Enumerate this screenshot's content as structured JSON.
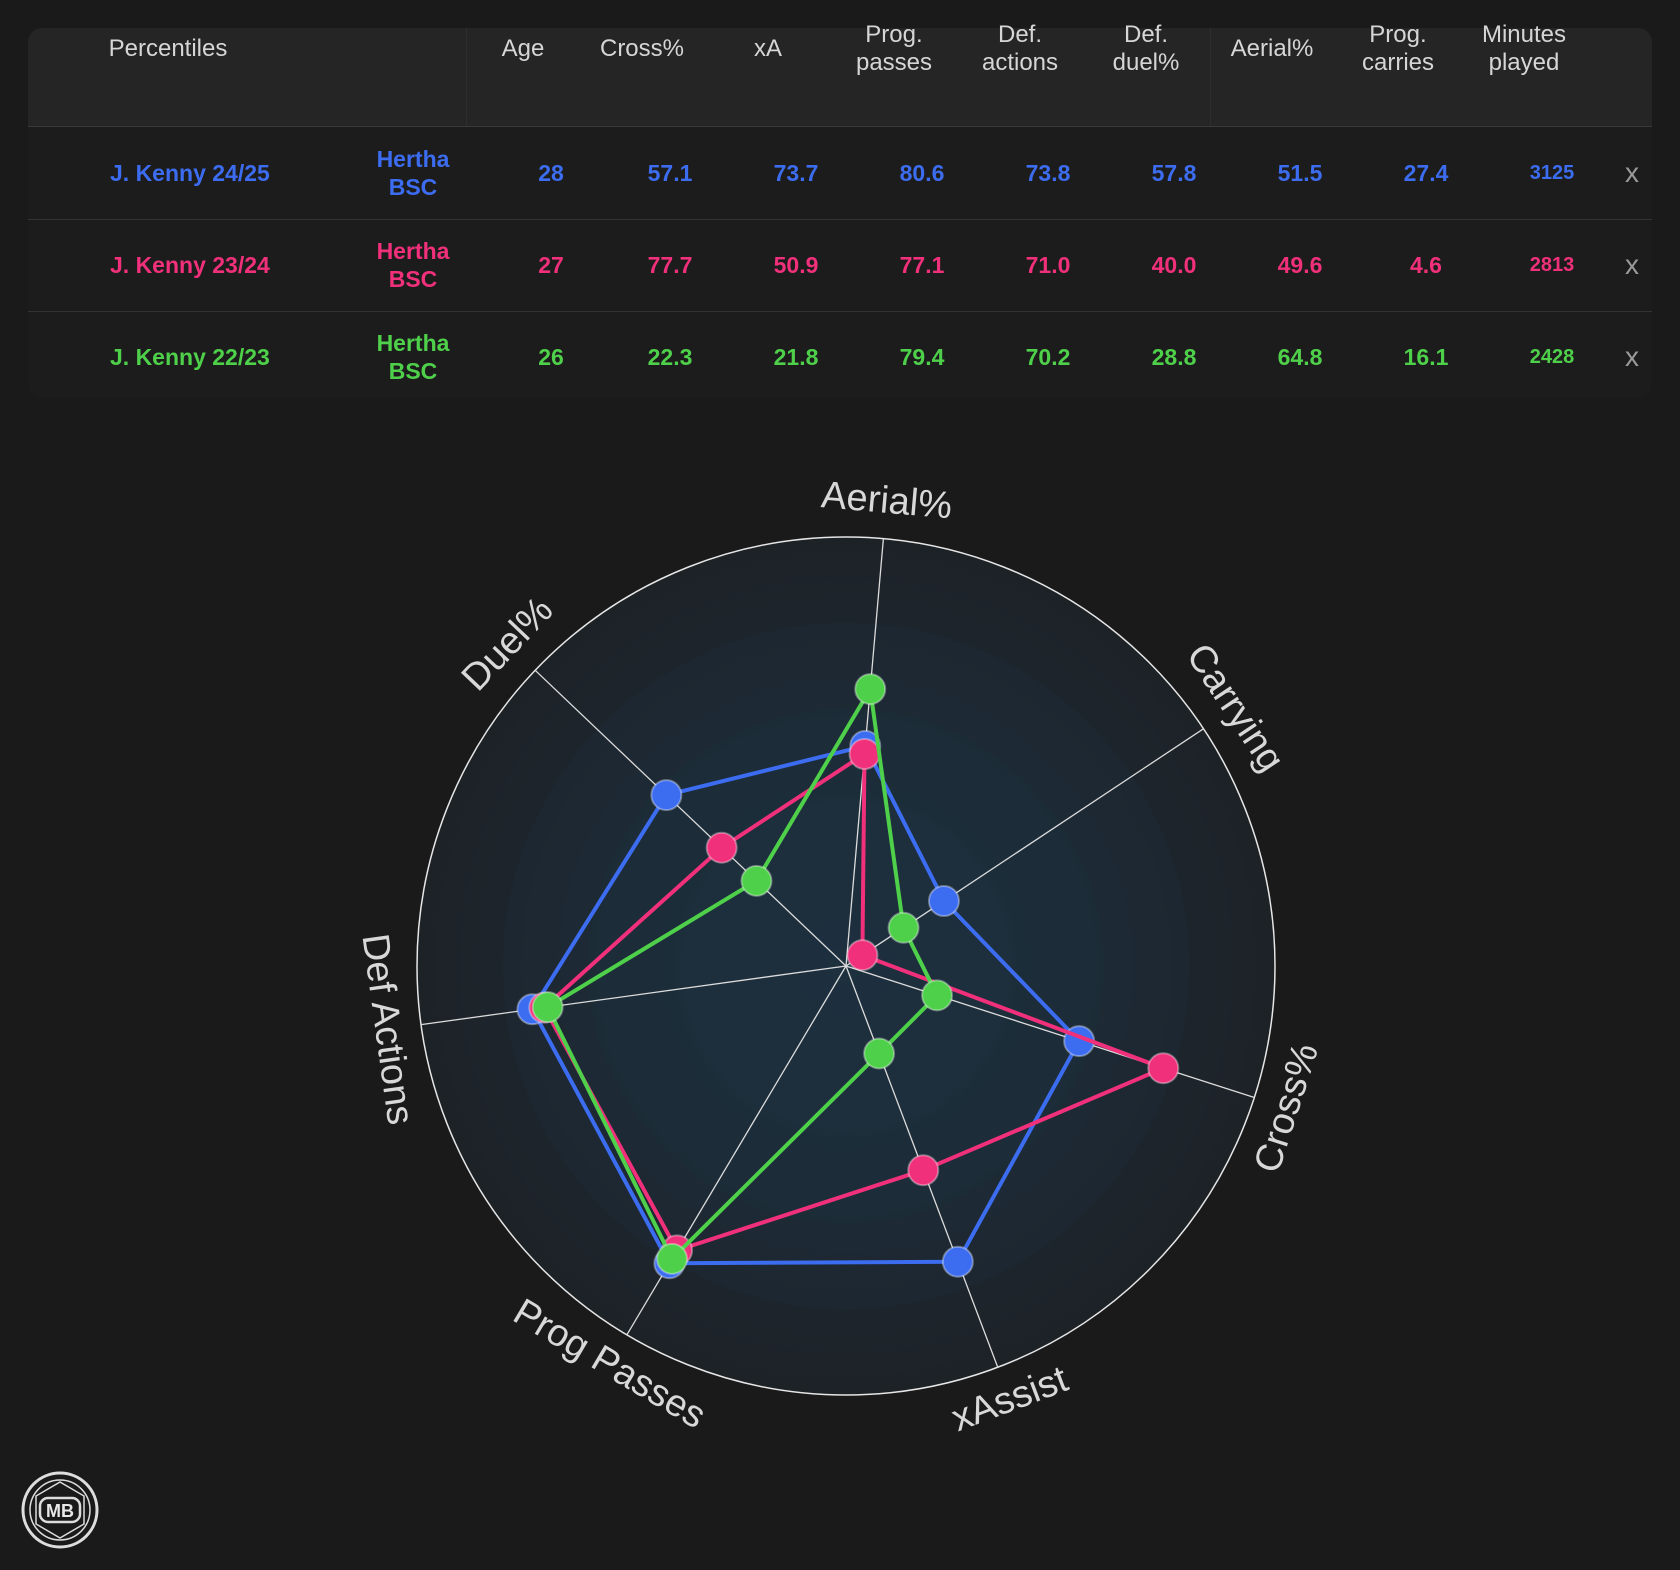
{
  "table": {
    "headers": {
      "percentiles": "Percentiles",
      "age": "Age",
      "cross": "Cross%",
      "xa": "xA",
      "prog_passes": "Prog.\npasses",
      "def_actions": "Def.\nactions",
      "def_duel": "Def.\nduel%",
      "aerial": "Aerial%",
      "prog_carries": "Prog.\ncarries",
      "minutes": "Minutes\nplayed"
    },
    "rows": [
      {
        "name": "J. Kenny 24/25",
        "team": "Hertha\nBSC",
        "age": "28",
        "cross": "57.1",
        "xa": "73.7",
        "prog_passes": "80.6",
        "def_actions": "73.8",
        "def_duel": "57.8",
        "aerial": "51.5",
        "prog_carries": "27.4",
        "minutes": "3125",
        "remove": "x",
        "color": "#3c6cf0"
      },
      {
        "name": "J. Kenny 23/24",
        "team": "Hertha\nBSC",
        "age": "27",
        "cross": "77.7",
        "xa": "50.9",
        "prog_passes": "77.1",
        "def_actions": "71.0",
        "def_duel": "40.0",
        "aerial": "49.6",
        "prog_carries": "4.6",
        "minutes": "2813",
        "remove": "x",
        "color": "#f0307a"
      },
      {
        "name": "J. Kenny 22/23",
        "team": "Hertha\nBSC",
        "age": "26",
        "cross": "22.3",
        "xa": "21.8",
        "prog_passes": "79.4",
        "def_actions": "70.2",
        "def_duel": "28.8",
        "aerial": "64.8",
        "prog_carries": "16.1",
        "minutes": "2428",
        "remove": "x",
        "color": "#4fd04a"
      }
    ]
  },
  "chart_data": {
    "type": "radar",
    "axes": [
      "Aerial%",
      "Carrying",
      "Cross%",
      "xAssist",
      "Prog Passes",
      "Def Actions",
      "Duel%"
    ],
    "range": [
      0,
      100
    ],
    "grid": "circles",
    "series": [
      {
        "name": "J. Kenny 24/25",
        "color": "#3c6cf0",
        "values": [
          51.5,
          27.4,
          57.1,
          73.7,
          80.6,
          73.8,
          57.8
        ]
      },
      {
        "name": "J. Kenny 23/24",
        "color": "#f0307a",
        "values": [
          49.6,
          4.6,
          77.7,
          50.9,
          77.1,
          71.0,
          40.0
        ]
      },
      {
        "name": "J. Kenny 22/23",
        "color": "#4fd04a",
        "values": [
          64.8,
          16.1,
          22.3,
          21.8,
          79.4,
          70.2,
          28.8
        ]
      }
    ]
  },
  "logo": {
    "text": "MB"
  }
}
